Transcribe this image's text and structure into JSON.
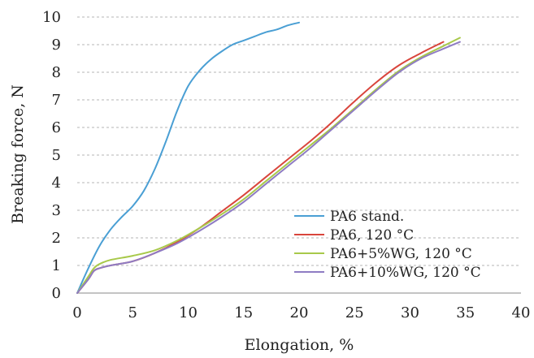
{
  "chart_data": {
    "type": "line",
    "xlabel": "Elongation, %",
    "ylabel": "Breaking force, N",
    "xlim": [
      0,
      40
    ],
    "ylim": [
      0,
      10
    ],
    "xticks": [
      "0",
      "5",
      "10",
      "15",
      "20",
      "25",
      "30",
      "35",
      "40"
    ],
    "yticks": [
      "0",
      "1",
      "2",
      "3",
      "4",
      "5",
      "6",
      "7",
      "8",
      "9",
      "10"
    ],
    "grid": "horizontal dashed",
    "legend_position": "bottom-right",
    "series": [
      {
        "name": "PA6 stand.",
        "color": "#4a9fd4",
        "points": [
          [
            0,
            0
          ],
          [
            1,
            0.9
          ],
          [
            2,
            1.7
          ],
          [
            3,
            2.3
          ],
          [
            4,
            2.75
          ],
          [
            5,
            3.15
          ],
          [
            6,
            3.7
          ],
          [
            7,
            4.5
          ],
          [
            8,
            5.5
          ],
          [
            9,
            6.6
          ],
          [
            10,
            7.5
          ],
          [
            11,
            8.05
          ],
          [
            12,
            8.45
          ],
          [
            13,
            8.75
          ],
          [
            14,
            9.0
          ],
          [
            15,
            9.15
          ],
          [
            16,
            9.3
          ],
          [
            17,
            9.45
          ],
          [
            18,
            9.55
          ],
          [
            19,
            9.7
          ],
          [
            20,
            9.8
          ]
        ]
      },
      {
        "name": "PA6, 120 °C",
        "color": "#d9453c",
        "points": [
          [
            0,
            0
          ],
          [
            1,
            0.5
          ],
          [
            1.5,
            0.8
          ],
          [
            2,
            0.9
          ],
          [
            3,
            1.0
          ],
          [
            5,
            1.15
          ],
          [
            7,
            1.45
          ],
          [
            9,
            1.85
          ],
          [
            11,
            2.35
          ],
          [
            13,
            2.95
          ],
          [
            15,
            3.55
          ],
          [
            17,
            4.2
          ],
          [
            19,
            4.85
          ],
          [
            21,
            5.5
          ],
          [
            23,
            6.2
          ],
          [
            25,
            6.95
          ],
          [
            27,
            7.65
          ],
          [
            29,
            8.25
          ],
          [
            31,
            8.7
          ],
          [
            33,
            9.1
          ]
        ]
      },
      {
        "name": "PA6+5%WG, 120 °C",
        "color": "#a8c94a",
        "points": [
          [
            0,
            0
          ],
          [
            1,
            0.6
          ],
          [
            1.5,
            0.9
          ],
          [
            2,
            1.05
          ],
          [
            3,
            1.2
          ],
          [
            5,
            1.35
          ],
          [
            7,
            1.55
          ],
          [
            9,
            1.9
          ],
          [
            11,
            2.35
          ],
          [
            13,
            2.85
          ],
          [
            15,
            3.4
          ],
          [
            17,
            4.05
          ],
          [
            19,
            4.7
          ],
          [
            21,
            5.35
          ],
          [
            23,
            6.0
          ],
          [
            25,
            6.7
          ],
          [
            27,
            7.4
          ],
          [
            29,
            8.05
          ],
          [
            31,
            8.55
          ],
          [
            33,
            8.95
          ],
          [
            34.5,
            9.25
          ]
        ]
      },
      {
        "name": "PA6+10%WG, 120 °C",
        "color": "#8e7cc3",
        "points": [
          [
            0,
            0
          ],
          [
            1,
            0.5
          ],
          [
            1.5,
            0.8
          ],
          [
            2,
            0.9
          ],
          [
            3,
            1.0
          ],
          [
            5,
            1.15
          ],
          [
            7,
            1.45
          ],
          [
            9,
            1.8
          ],
          [
            11,
            2.25
          ],
          [
            13,
            2.75
          ],
          [
            15,
            3.3
          ],
          [
            17,
            3.95
          ],
          [
            19,
            4.6
          ],
          [
            21,
            5.25
          ],
          [
            23,
            5.95
          ],
          [
            25,
            6.65
          ],
          [
            27,
            7.35
          ],
          [
            29,
            8.0
          ],
          [
            31,
            8.5
          ],
          [
            33,
            8.85
          ],
          [
            34.5,
            9.1
          ]
        ]
      }
    ]
  }
}
